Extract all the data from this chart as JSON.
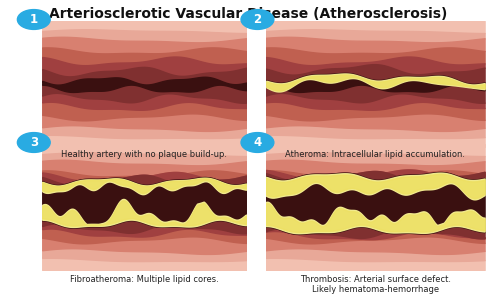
{
  "title": "Arteriosclerotic Vascular Disease (Atherosclerosis)",
  "title_fontsize": 10,
  "bg_color": "#ffffff",
  "panels": [
    {
      "num": "1",
      "label": "Healthy artery with no plaque build-up.",
      "plaque_level": 0
    },
    {
      "num": "2",
      "label": "Atheroma: Intracellular lipid accumulation.",
      "plaque_level": 1
    },
    {
      "num": "3",
      "label": "Fibroatheroma: Multiple lipid cores.",
      "plaque_level": 2
    },
    {
      "num": "4",
      "label": "Thrombosis: Arterial surface defect.\nLikely hematoma-hemorrhage",
      "plaque_level": 3
    }
  ],
  "colors": {
    "outermost_pink": "#f2c0b0",
    "outer_pink": "#e8a898",
    "mid_pink": "#d88070",
    "layer_red1": "#c06050",
    "layer_red2": "#a04040",
    "layer_dark1": "#803030",
    "layer_dark2": "#602020",
    "lumen_dark": "#3a1010",
    "plaque_cream": "#f5ee90",
    "plaque_yellow": "#ede060",
    "plaque_dark_edge": "#c8b830",
    "circle_blue": "#29abe2",
    "white": "#ffffff",
    "panel_border": "#d08070"
  }
}
